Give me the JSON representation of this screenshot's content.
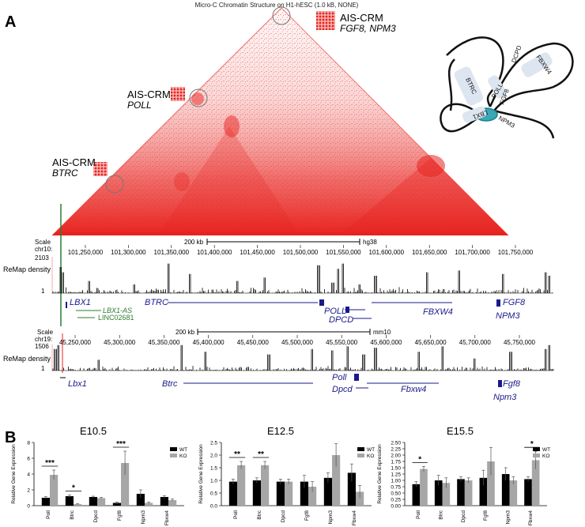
{
  "panel_a": {
    "letter": "A",
    "hic_title": "Micro-C Chromatin Structure on H1-hESC (1.0 kB, NONE)",
    "crm_labels": [
      {
        "prefix": "AIS-CRM",
        "genes": "FGF8, NPM3"
      },
      {
        "prefix": "AIS-CRM",
        "genes": "POLL"
      },
      {
        "prefix": "AIS-CRM",
        "genes": "BTRC"
      }
    ],
    "schematic_labels": [
      "BTRC",
      "DCPD",
      "FBXW4",
      "POLL",
      "FGF8",
      "NPM3",
      "LBX1"
    ],
    "human": {
      "scale_label": "Scale",
      "chr_label": "chr10:",
      "scale_bar": "200 kb",
      "assembly": "hg38",
      "ticks": [
        "101,250,000",
        "101,300,000",
        "101,350,000",
        "101,400,000",
        "101,450,000",
        "101,500,000",
        "101,550,000",
        "101,600,000",
        "101,650,000",
        "101,700,000",
        "101,750,000"
      ],
      "track_label": "ReMap density",
      "ymax": "2103",
      "ymin": "1",
      "genes": [
        "LBX1",
        "LBX1-AS",
        "LINC02681",
        "BTRC",
        "POLL",
        "DPCD",
        "FBXW4",
        "FGF8",
        "NPM3"
      ]
    },
    "mouse": {
      "scale_label": "Scale",
      "chr_label": "chr19:",
      "scale_bar": "200 kb",
      "assembly": "mm10",
      "ticks": [
        "45,250,000",
        "45,300,000",
        "45,350,000",
        "45,400,000",
        "45,450,000",
        "45,500,000",
        "45,550,000",
        "45,600,000",
        "45,650,000",
        "45,700,000",
        "45,750,000"
      ],
      "track_label": "ReMap density",
      "ymax": "1506",
      "ymin": "1",
      "genes": [
        "Lbx1",
        "Btrc",
        "Poll",
        "Dpcd",
        "Fbxw4",
        "Fgf8",
        "Npm3"
      ]
    }
  },
  "panel_b": {
    "letter": "B"
  },
  "colors": {
    "hic": "#e8231f",
    "gene_human": "#1a1a8c",
    "gene_green": "#2e7d32",
    "wt": "#000000",
    "ko": "#a6a6a6"
  },
  "chart_data": [
    {
      "type": "bar",
      "title": "E10.5",
      "ylabel": "Relative Gene Expression",
      "categories": [
        "Poll",
        "Btrc",
        "Dpcd",
        "Fgf8",
        "Npm3",
        "Fbxw4"
      ],
      "ylim": [
        0,
        8
      ],
      "yticks": [
        "0",
        "2",
        "4",
        "6",
        "8"
      ],
      "series": [
        {
          "name": "WT",
          "values": [
            1.0,
            1.2,
            1.1,
            0.35,
            1.5,
            1.1
          ],
          "err": [
            0.15,
            0.15,
            0.1,
            0.1,
            0.5,
            0.15
          ]
        },
        {
          "name": "KO",
          "values": [
            3.9,
            0.2,
            0.95,
            5.4,
            0.35,
            0.7
          ],
          "err": [
            0.6,
            0.05,
            0.1,
            1.5,
            0.1,
            0.15
          ]
        }
      ],
      "significance": [
        {
          "index": 0,
          "label": "***"
        },
        {
          "index": 1,
          "label": "*"
        },
        {
          "index": 3,
          "label": "***"
        }
      ]
    },
    {
      "type": "bar",
      "title": "E12.5",
      "ylabel": "Relative Gene Expression",
      "categories": [
        "Poll",
        "Btrc",
        "Dpcd",
        "Fgf8",
        "Npm3",
        "Fbxw4"
      ],
      "ylim": [
        0,
        2.5
      ],
      "yticks": [
        "0.0",
        "0.5",
        "1.0",
        "1.5",
        "2.0",
        "2.5"
      ],
      "series": [
        {
          "name": "WT",
          "values": [
            0.95,
            1.0,
            0.95,
            0.95,
            1.1,
            1.3
          ],
          "err": [
            0.1,
            0.1,
            0.1,
            0.25,
            0.2,
            0.35
          ]
        },
        {
          "name": "KO",
          "values": [
            1.6,
            1.6,
            0.95,
            0.75,
            2.0,
            0.55
          ],
          "err": [
            0.15,
            0.15,
            0.1,
            0.2,
            0.45,
            0.25
          ]
        }
      ],
      "significance": [
        {
          "index": 0,
          "label": "**"
        },
        {
          "index": 1,
          "label": "**"
        }
      ]
    },
    {
      "type": "bar",
      "title": "E15.5",
      "ylabel": "Relative Gene Expression",
      "categories": [
        "Poll",
        "Btrc",
        "Dpcd",
        "Fgf8",
        "Npm3",
        "Fbxw4"
      ],
      "ylim": [
        0,
        2.5
      ],
      "yticks": [
        "0.00",
        "0.25",
        "0.50",
        "0.75",
        "1.00",
        "1.25",
        "1.50",
        "1.75",
        "2.00",
        "2.25",
        "2.50"
      ],
      "series": [
        {
          "name": "WT",
          "values": [
            0.85,
            1.0,
            1.05,
            1.1,
            1.25,
            1.05
          ],
          "err": [
            0.1,
            0.2,
            0.1,
            0.3,
            0.25,
            0.1
          ]
        },
        {
          "name": "KO",
          "values": [
            1.45,
            0.9,
            1.0,
            1.75,
            1.0,
            1.8
          ],
          "err": [
            0.1,
            0.2,
            0.1,
            0.55,
            0.15,
            0.35
          ]
        }
      ],
      "significance": [
        {
          "index": 0,
          "label": "*"
        },
        {
          "index": 5,
          "label": "*"
        }
      ]
    }
  ]
}
